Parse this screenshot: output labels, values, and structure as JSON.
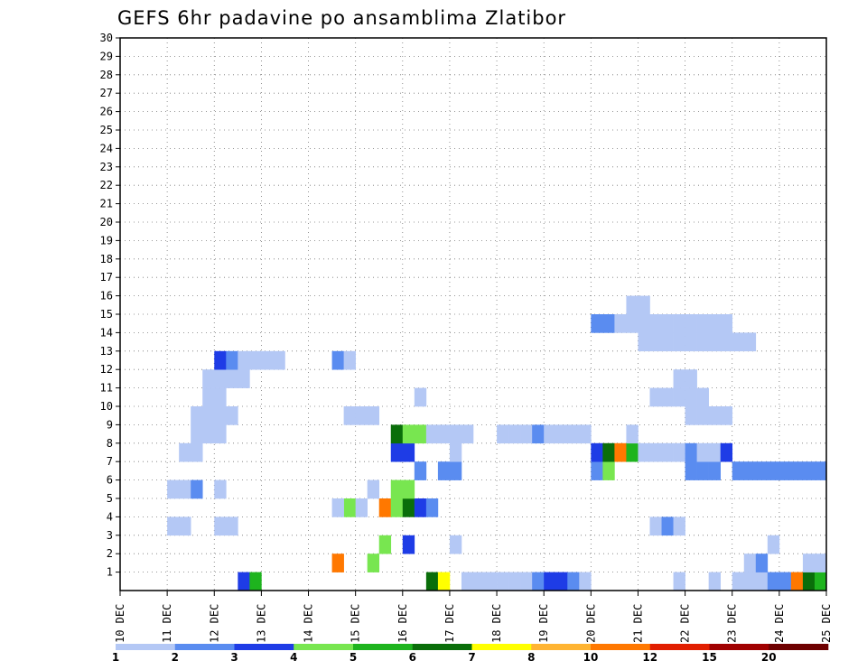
{
  "chart_data": {
    "type": "heatmap",
    "title": "GEFS 6hr padavine po ansamblima Zlatibor",
    "xlabel": "",
    "ylabel": "",
    "x_ticks": [
      "10 DEC",
      "11 DEC",
      "12 DEC",
      "13 DEC",
      "14 DEC",
      "15 DEC",
      "16 DEC",
      "17 DEC",
      "18 DEC",
      "19 DEC",
      "20 DEC",
      "21 DEC",
      "22 DEC",
      "23 DEC",
      "24 DEC",
      "25 DEC"
    ],
    "y_ticks": [
      1,
      2,
      3,
      4,
      5,
      6,
      7,
      8,
      9,
      10,
      11,
      12,
      13,
      14,
      15,
      16,
      17,
      18,
      19,
      20,
      21,
      22,
      23,
      24,
      25,
      26,
      27,
      28,
      29,
      30
    ],
    "x_range": [
      "10 DEC 00Z",
      "25 DEC 00Z"
    ],
    "y_range": [
      0,
      30
    ],
    "time_step_hours": 6,
    "grid": true,
    "colorbar": {
      "position": "bottom",
      "levels": [
        "1",
        "2",
        "3",
        "4",
        "5",
        "6",
        "7",
        "8",
        "10",
        "12",
        "15",
        "20"
      ],
      "colors": [
        "#b4c8f5",
        "#5a8cf0",
        "#1e3ce6",
        "#78e650",
        "#1eb41e",
        "#0a6e0a",
        "#ffff00",
        "#ffb432",
        "#ff7800",
        "#e11e00",
        "#a00000",
        "#6e0000"
      ]
    },
    "cells": [
      [
        0,
        12,
        2,
        3
      ],
      [
        0,
        12,
        3,
        5
      ],
      [
        0,
        16,
        2,
        6
      ],
      [
        0,
        16,
        3,
        7
      ],
      [
        0,
        17,
        1,
        1
      ],
      [
        0,
        17,
        2,
        1
      ],
      [
        0,
        17,
        3,
        1
      ],
      [
        0,
        18,
        0,
        1
      ],
      [
        0,
        18,
        1,
        1
      ],
      [
        0,
        18,
        2,
        1
      ],
      [
        0,
        18,
        3,
        2
      ],
      [
        0,
        19,
        0,
        3
      ],
      [
        0,
        19,
        1,
        3
      ],
      [
        0,
        19,
        2,
        2
      ],
      [
        0,
        19,
        3,
        1
      ],
      [
        0,
        21,
        3,
        1
      ],
      [
        0,
        22,
        2,
        1
      ],
      [
        0,
        23,
        0,
        1
      ],
      [
        0,
        23,
        1,
        1
      ],
      [
        0,
        23,
        2,
        1
      ],
      [
        0,
        23,
        3,
        2
      ],
      [
        0,
        24,
        0,
        2
      ],
      [
        0,
        24,
        1,
        9
      ],
      [
        0,
        24,
        2,
        6
      ],
      [
        0,
        24,
        3,
        5
      ],
      [
        1,
        14,
        2,
        9
      ],
      [
        1,
        15,
        1,
        4
      ],
      [
        1,
        23,
        1,
        1
      ],
      [
        1,
        23,
        2,
        2
      ],
      [
        1,
        24,
        3,
        1
      ],
      [
        1,
        24,
        2,
        1
      ],
      [
        2,
        17,
        0,
        1
      ],
      [
        2,
        23,
        3,
        1
      ],
      [
        2,
        15,
        2,
        4
      ],
      [
        2,
        16,
        0,
        3
      ],
      [
        3,
        11,
        0,
        1
      ],
      [
        3,
        11,
        1,
        1
      ],
      [
        3,
        12,
        0,
        1
      ],
      [
        3,
        12,
        1,
        1
      ],
      [
        3,
        21,
        1,
        1
      ],
      [
        3,
        21,
        2,
        2
      ],
      [
        3,
        21,
        3,
        1
      ],
      [
        4,
        14,
        3,
        4
      ],
      [
        4,
        14,
        2,
        1
      ],
      [
        4,
        15,
        0,
        1
      ],
      [
        4,
        15,
        2,
        9
      ],
      [
        4,
        15,
        3,
        4
      ],
      [
        4,
        16,
        0,
        6
      ],
      [
        4,
        16,
        1,
        3
      ],
      [
        4,
        16,
        2,
        2
      ],
      [
        5,
        11,
        1,
        1
      ],
      [
        5,
        11,
        2,
        2
      ],
      [
        5,
        12,
        0,
        1
      ],
      [
        5,
        11,
        0,
        1
      ],
      [
        5,
        15,
        1,
        1
      ],
      [
        5,
        15,
        3,
        4
      ],
      [
        5,
        16,
        0,
        4
      ],
      [
        6,
        16,
        1,
        2
      ],
      [
        6,
        16,
        3,
        2
      ],
      [
        6,
        17,
        0,
        2
      ],
      [
        6,
        20,
        0,
        2
      ],
      [
        6,
        20,
        1,
        4
      ],
      [
        6,
        22,
        0,
        2
      ],
      [
        6,
        22,
        1,
        2
      ],
      [
        6,
        22,
        2,
        2
      ],
      [
        6,
        23,
        0,
        2
      ],
      [
        6,
        23,
        1,
        2
      ],
      [
        6,
        23,
        2,
        2
      ],
      [
        6,
        23,
        3,
        2
      ],
      [
        6,
        24,
        0,
        2
      ],
      [
        6,
        24,
        1,
        2
      ],
      [
        6,
        24,
        2,
        2
      ],
      [
        6,
        24,
        3,
        2
      ],
      [
        7,
        11,
        1,
        1
      ],
      [
        7,
        11,
        2,
        1
      ],
      [
        7,
        15,
        3,
        3
      ],
      [
        7,
        16,
        0,
        3
      ],
      [
        7,
        17,
        0,
        1
      ],
      [
        7,
        20,
        0,
        3
      ],
      [
        7,
        20,
        1,
        6
      ],
      [
        7,
        20,
        2,
        9
      ],
      [
        7,
        20,
        3,
        5
      ],
      [
        7,
        21,
        0,
        1
      ],
      [
        7,
        21,
        1,
        1
      ],
      [
        7,
        21,
        2,
        1
      ],
      [
        7,
        21,
        3,
        1
      ],
      [
        7,
        22,
        0,
        2
      ],
      [
        7,
        22,
        1,
        1
      ],
      [
        7,
        22,
        2,
        1
      ],
      [
        7,
        22,
        3,
        3
      ],
      [
        8,
        11,
        2,
        1
      ],
      [
        8,
        11,
        3,
        1
      ],
      [
        8,
        12,
        0,
        1
      ],
      [
        8,
        15,
        3,
        6
      ],
      [
        8,
        16,
        0,
        4
      ],
      [
        8,
        16,
        1,
        4
      ],
      [
        8,
        16,
        2,
        1
      ],
      [
        8,
        16,
        3,
        1
      ],
      [
        8,
        17,
        0,
        1
      ],
      [
        8,
        17,
        1,
        1
      ],
      [
        8,
        18,
        0,
        1
      ],
      [
        8,
        18,
        1,
        1
      ],
      [
        8,
        18,
        2,
        1
      ],
      [
        8,
        18,
        3,
        2
      ],
      [
        8,
        19,
        0,
        1
      ],
      [
        8,
        19,
        1,
        1
      ],
      [
        8,
        19,
        2,
        1
      ],
      [
        8,
        19,
        3,
        1
      ],
      [
        8,
        20,
        3,
        1
      ],
      [
        9,
        11,
        2,
        1
      ],
      [
        9,
        11,
        3,
        1
      ],
      [
        9,
        12,
        0,
        1
      ],
      [
        9,
        12,
        1,
        1
      ],
      [
        9,
        14,
        3,
        1
      ],
      [
        9,
        15,
        0,
        1
      ],
      [
        9,
        15,
        1,
        1
      ],
      [
        9,
        22,
        0,
        1
      ],
      [
        9,
        22,
        1,
        1
      ],
      [
        9,
        22,
        2,
        1
      ],
      [
        9,
        22,
        3,
        1
      ],
      [
        10,
        11,
        3,
        1
      ],
      [
        10,
        12,
        0,
        1
      ],
      [
        10,
        16,
        1,
        1
      ],
      [
        10,
        21,
        1,
        1
      ],
      [
        10,
        21,
        2,
        1
      ],
      [
        10,
        21,
        3,
        1
      ],
      [
        10,
        22,
        0,
        1
      ],
      [
        10,
        22,
        1,
        1
      ],
      [
        11,
        11,
        3,
        1
      ],
      [
        11,
        12,
        0,
        1
      ],
      [
        11,
        12,
        1,
        1
      ],
      [
        11,
        12,
        2,
        1
      ],
      [
        11,
        21,
        3,
        1
      ],
      [
        11,
        22,
        0,
        1
      ],
      [
        12,
        12,
        0,
        3
      ],
      [
        12,
        12,
        1,
        2
      ],
      [
        12,
        12,
        2,
        1
      ],
      [
        12,
        12,
        3,
        1
      ],
      [
        12,
        13,
        0,
        1
      ],
      [
        12,
        13,
        1,
        1
      ],
      [
        12,
        14,
        2,
        2
      ],
      [
        12,
        14,
        3,
        1
      ],
      [
        13,
        21,
        0,
        1
      ],
      [
        13,
        21,
        1,
        1
      ],
      [
        13,
        21,
        2,
        1
      ],
      [
        13,
        21,
        3,
        1
      ],
      [
        13,
        22,
        0,
        1
      ],
      [
        13,
        22,
        1,
        1
      ],
      [
        13,
        22,
        2,
        1
      ],
      [
        13,
        22,
        3,
        1
      ],
      [
        13,
        23,
        0,
        1
      ],
      [
        13,
        23,
        1,
        1
      ],
      [
        14,
        20,
        0,
        2
      ],
      [
        14,
        20,
        1,
        2
      ],
      [
        14,
        20,
        2,
        1
      ],
      [
        14,
        20,
        3,
        1
      ],
      [
        14,
        21,
        0,
        1
      ],
      [
        14,
        21,
        1,
        1
      ],
      [
        14,
        21,
        2,
        1
      ],
      [
        14,
        21,
        3,
        1
      ],
      [
        14,
        22,
        0,
        1
      ],
      [
        14,
        22,
        1,
        1
      ],
      [
        14,
        22,
        2,
        1
      ],
      [
        14,
        22,
        3,
        1
      ],
      [
        15,
        20,
        3,
        1
      ],
      [
        15,
        21,
        0,
        1
      ]
    ]
  }
}
